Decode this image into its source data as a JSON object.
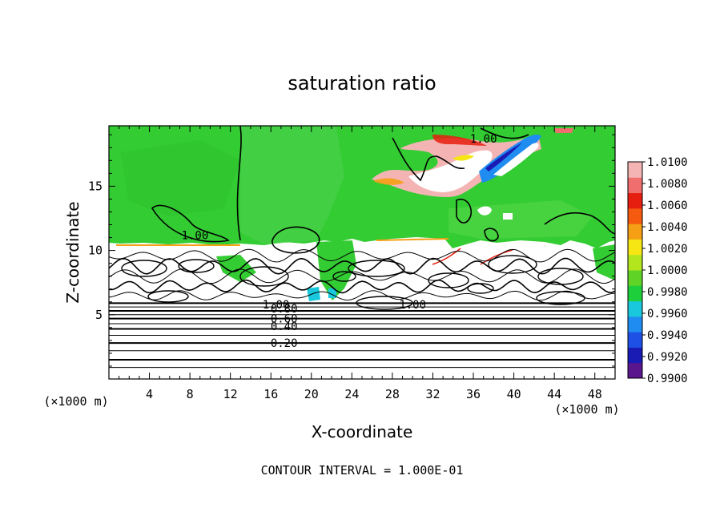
{
  "chart_data": {
    "type": "heatmap",
    "title": "saturation ratio",
    "xlabel": "X-coordinate",
    "ylabel": "Z-coordinate",
    "x_unit_label": "(×1000 m)",
    "y_unit_label": "(×1000 m)",
    "xlim": [
      0,
      50
    ],
    "ylim": [
      0,
      19.7
    ],
    "x_ticks": [
      4,
      8,
      12,
      16,
      20,
      24,
      28,
      32,
      36,
      40,
      44,
      48
    ],
    "y_ticks": [
      5,
      10,
      15
    ],
    "footer": "CONTOUR INTERVAL = 1.000E-01",
    "colorbar": {
      "min": 0.99,
      "max": 1.01,
      "tick_labels": [
        "1.0100",
        "1.0080",
        "1.0060",
        "1.0040",
        "1.0020",
        "1.0000",
        "0.9980",
        "0.9960",
        "0.9940",
        "0.9920",
        "0.9900"
      ],
      "colors": [
        "#5a168c",
        "#1a1ab4",
        "#1e50e6",
        "#1e8cf0",
        "#19c8dc",
        "#1ecf3c",
        "#5fd426",
        "#b4e61e",
        "#f5e614",
        "#f5a014",
        "#f55a0f",
        "#e61e0f",
        "#f06e6e",
        "#f5b4b4"
      ]
    },
    "contour_levels_labeled": [
      {
        "label": "1.00",
        "x": 8.5,
        "z": 11.2
      },
      {
        "label": "1.00",
        "x": 37.0,
        "z": 18.7
      },
      {
        "label": "1.00",
        "x": 30.0,
        "z": 5.8
      },
      {
        "label": "1.00",
        "x": 16.5,
        "z": 5.8
      },
      {
        "label": "0.80",
        "x": 17.3,
        "z": 5.5
      },
      {
        "label": "0.60",
        "x": 17.3,
        "z": 4.7
      },
      {
        "label": "0.40",
        "x": 17.3,
        "z": 4.1
      },
      {
        "label": "0.20",
        "x": 17.3,
        "z": 2.8
      }
    ],
    "regions": {
      "upper_layer": {
        "z_range": [
          10.5,
          19.7
        ],
        "dominant_value": 1.0
      }
    },
    "stratified_contour_z": [
      0.9,
      1.5,
      2.2,
      2.8,
      3.4,
      3.9,
      4.3,
      4.7,
      5.0,
      5.3,
      5.6,
      5.9
    ]
  }
}
